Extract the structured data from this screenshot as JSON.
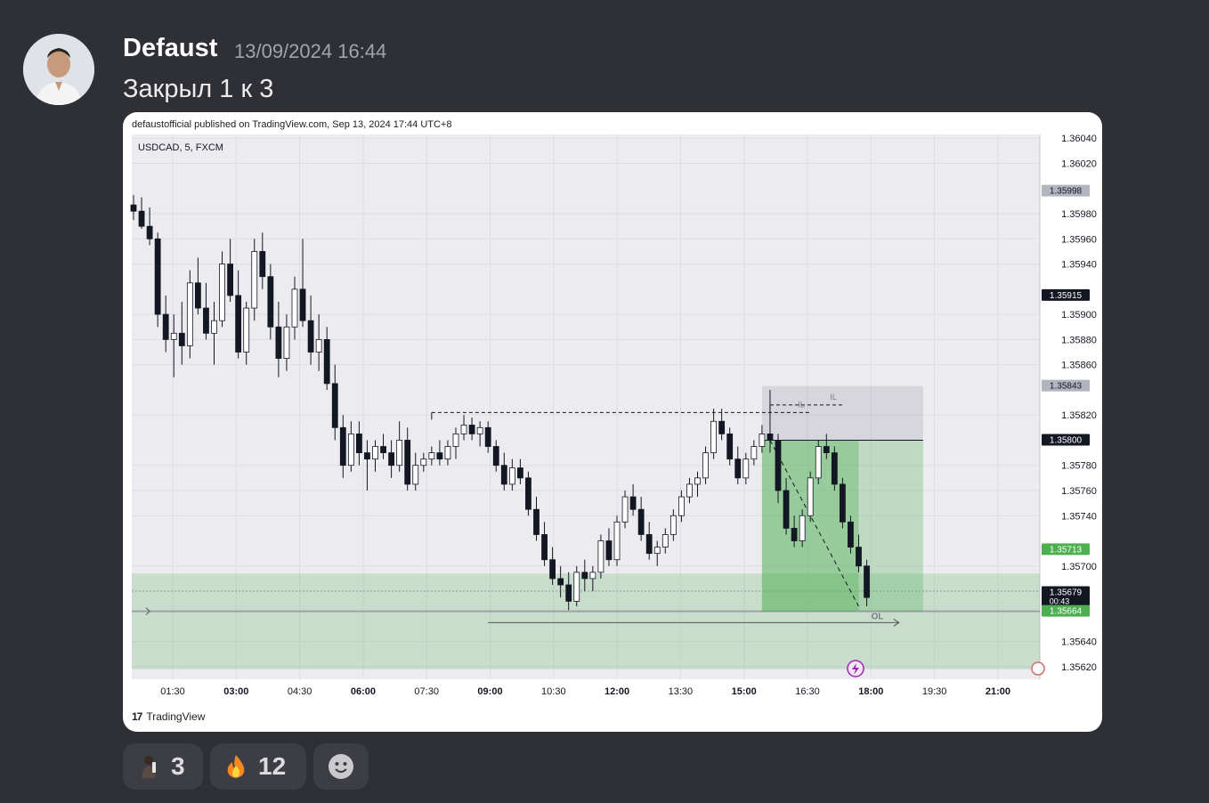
{
  "message": {
    "author": "Defaust",
    "timestamp": "13/09/2024 16:44",
    "text": "Закрыл 1 к 3"
  },
  "embed": {
    "publish_line": "defaustofficial published on TradingView.com, Sep 13, 2024 17:44 UTC+8",
    "footer_brand": "TradingView",
    "footer_logo": "17"
  },
  "chart_data": {
    "type": "candlestick",
    "symbol_label": "USDCAD, 5, FXCM",
    "x_tick_labels": [
      "01:30",
      "03:00",
      "04:30",
      "06:00",
      "07:30",
      "09:00",
      "10:30",
      "12:00",
      "13:30",
      "15:00",
      "16:30",
      "18:00",
      "19:30",
      "21:00"
    ],
    "x_tick_bold": [
      "03:00",
      "06:00",
      "09:00",
      "12:00",
      "15:00",
      "18:00",
      "21:00"
    ],
    "y_tick_labels": [
      "1.36040",
      "1.36020",
      "1.35980",
      "1.35960",
      "1.35940",
      "1.35900",
      "1.35880",
      "1.35860",
      "1.35820",
      "1.35780",
      "1.35760",
      "1.35740",
      "1.35700",
      "1.35640",
      "1.35620"
    ],
    "ylim": [
      1.3561,
      1.36043
    ],
    "price_badges": [
      {
        "label": "1.35998",
        "value": 1.35998,
        "color": "#b2b5be",
        "text_color": "#131722"
      },
      {
        "label": "1.35915",
        "value": 1.35915,
        "color": "#131722",
        "text_color": "#ffffff"
      },
      {
        "label": "1.35843",
        "value": 1.35843,
        "color": "#b2b5be",
        "text_color": "#131722"
      },
      {
        "label": "1.35800",
        "value": 1.358,
        "color": "#131722",
        "text_color": "#ffffff"
      },
      {
        "label": "1.35713",
        "value": 1.35713,
        "color": "#4caf50",
        "text_color": "#ffffff"
      },
      {
        "label": "1.35679",
        "value": 1.35679,
        "color": "#131722",
        "text_color": "#ffffff",
        "sub": "00:43"
      },
      {
        "label": "1.35664",
        "value": 1.35664,
        "color": "#4caf50",
        "text_color": "#ffffff"
      }
    ],
    "annotations": [
      "IL",
      "IL",
      "OL"
    ],
    "position": {
      "entry": 1.358,
      "stop": 1.35843,
      "target": 1.35664
    },
    "demand_zone": {
      "top": 1.35694,
      "bottom": 1.35618
    },
    "colors": {
      "up": "#ffffff",
      "down": "#131722",
      "profit_zone": "#4caf50",
      "stop_zone": "#9598a1",
      "chart_bg": "#ecebf0"
    },
    "candles": [
      [
        0,
        1.35987,
        1.35995,
        1.35975,
        1.35982
      ],
      [
        1,
        1.35982,
        1.35993,
        1.35968,
        1.3597
      ],
      [
        2,
        1.3597,
        1.35985,
        1.35955,
        1.3596
      ],
      [
        3,
        1.3596,
        1.35965,
        1.3589,
        1.359
      ],
      [
        4,
        1.359,
        1.35915,
        1.3587,
        1.3588
      ],
      [
        5,
        1.3588,
        1.359,
        1.3585,
        1.35885
      ],
      [
        6,
        1.35885,
        1.3591,
        1.3586,
        1.35875
      ],
      [
        7,
        1.35875,
        1.35935,
        1.35865,
        1.35925
      ],
      [
        8,
        1.35925,
        1.35945,
        1.359,
        1.35905
      ],
      [
        9,
        1.35905,
        1.35925,
        1.3588,
        1.35885
      ],
      [
        10,
        1.35885,
        1.3591,
        1.3586,
        1.35895
      ],
      [
        11,
        1.35895,
        1.3595,
        1.3589,
        1.3594
      ],
      [
        12,
        1.3594,
        1.3596,
        1.3591,
        1.35915
      ],
      [
        13,
        1.35915,
        1.35935,
        1.35865,
        1.3587
      ],
      [
        14,
        1.3587,
        1.3591,
        1.3586,
        1.35905
      ],
      [
        15,
        1.35905,
        1.3596,
        1.35895,
        1.3595
      ],
      [
        16,
        1.3595,
        1.35965,
        1.3592,
        1.3593
      ],
      [
        17,
        1.3593,
        1.3594,
        1.3588,
        1.3589
      ],
      [
        18,
        1.3589,
        1.3591,
        1.3585,
        1.35865
      ],
      [
        19,
        1.35865,
        1.359,
        1.35855,
        1.3589
      ],
      [
        20,
        1.3589,
        1.3593,
        1.3588,
        1.3592
      ],
      [
        21,
        1.3592,
        1.3596,
        1.3589,
        1.35895
      ],
      [
        22,
        1.35895,
        1.35915,
        1.3586,
        1.3587
      ],
      [
        23,
        1.3587,
        1.359,
        1.35855,
        1.3588
      ],
      [
        24,
        1.3588,
        1.3589,
        1.3584,
        1.35845
      ],
      [
        25,
        1.35845,
        1.3586,
        1.358,
        1.3581
      ],
      [
        26,
        1.3581,
        1.3582,
        1.3577,
        1.3578
      ],
      [
        27,
        1.3578,
        1.35815,
        1.35775,
        1.35805
      ],
      [
        28,
        1.35805,
        1.35815,
        1.3578,
        1.3579
      ],
      [
        29,
        1.3579,
        1.358,
        1.3576,
        1.35785
      ],
      [
        30,
        1.35785,
        1.358,
        1.35775,
        1.35795
      ],
      [
        31,
        1.35795,
        1.35805,
        1.35785,
        1.3579
      ],
      [
        32,
        1.3579,
        1.358,
        1.3577,
        1.3578
      ],
      [
        33,
        1.3578,
        1.35815,
        1.35775,
        1.358
      ],
      [
        34,
        1.358,
        1.3581,
        1.3576,
        1.35765
      ],
      [
        35,
        1.35765,
        1.3579,
        1.3576,
        1.3578
      ],
      [
        36,
        1.3578,
        1.3579,
        1.35775,
        1.35785
      ],
      [
        37,
        1.35785,
        1.35795,
        1.3578,
        1.3579
      ],
      [
        38,
        1.3579,
        1.358,
        1.3578,
        1.35785
      ],
      [
        39,
        1.35785,
        1.358,
        1.3578,
        1.35795
      ],
      [
        40,
        1.35795,
        1.3581,
        1.35785,
        1.35805
      ],
      [
        41,
        1.35805,
        1.3582,
        1.358,
        1.35812
      ],
      [
        42,
        1.35812,
        1.35818,
        1.358,
        1.35805
      ],
      [
        43,
        1.35805,
        1.35815,
        1.35795,
        1.3581
      ],
      [
        44,
        1.3581,
        1.35815,
        1.3579,
        1.35795
      ],
      [
        45,
        1.35795,
        1.358,
        1.35775,
        1.3578
      ],
      [
        46,
        1.3578,
        1.3579,
        1.3576,
        1.35765
      ],
      [
        47,
        1.35765,
        1.35785,
        1.3576,
        1.35778
      ],
      [
        48,
        1.35778,
        1.35785,
        1.35765,
        1.3577
      ],
      [
        49,
        1.3577,
        1.35775,
        1.3574,
        1.35745
      ],
      [
        50,
        1.35745,
        1.35755,
        1.3572,
        1.35725
      ],
      [
        51,
        1.35725,
        1.35735,
        1.357,
        1.35705
      ],
      [
        52,
        1.35705,
        1.35715,
        1.35685,
        1.3569
      ],
      [
        53,
        1.3569,
        1.357,
        1.35675,
        1.35685
      ],
      [
        54,
        1.35685,
        1.35695,
        1.35665,
        1.35672
      ],
      [
        55,
        1.35672,
        1.357,
        1.35668,
        1.35695
      ],
      [
        56,
        1.35695,
        1.35705,
        1.3568,
        1.3569
      ],
      [
        57,
        1.3569,
        1.357,
        1.3568,
        1.35695
      ],
      [
        58,
        1.35695,
        1.35725,
        1.3569,
        1.3572
      ],
      [
        59,
        1.3572,
        1.3573,
        1.357,
        1.35705
      ],
      [
        60,
        1.35705,
        1.3574,
        1.357,
        1.35735
      ],
      [
        61,
        1.35735,
        1.3576,
        1.3573,
        1.35755
      ],
      [
        62,
        1.35755,
        1.35765,
        1.3574,
        1.35745
      ],
      [
        63,
        1.35745,
        1.35755,
        1.3572,
        1.35725
      ],
      [
        64,
        1.35725,
        1.35735,
        1.35705,
        1.3571
      ],
      [
        65,
        1.3571,
        1.3572,
        1.357,
        1.35715
      ],
      [
        66,
        1.35715,
        1.3573,
        1.3571,
        1.35725
      ],
      [
        67,
        1.35725,
        1.35745,
        1.3572,
        1.3574
      ],
      [
        68,
        1.3574,
        1.3576,
        1.35735,
        1.35755
      ],
      [
        69,
        1.35755,
        1.3577,
        1.3575,
        1.35765
      ],
      [
        70,
        1.35765,
        1.35775,
        1.35755,
        1.3577
      ],
      [
        71,
        1.3577,
        1.35795,
        1.35765,
        1.3579
      ],
      [
        72,
        1.3579,
        1.35825,
        1.35785,
        1.35815
      ],
      [
        73,
        1.35815,
        1.35825,
        1.358,
        1.35805
      ],
      [
        74,
        1.35805,
        1.3581,
        1.3578,
        1.35785
      ],
      [
        75,
        1.35785,
        1.35795,
        1.35765,
        1.3577
      ],
      [
        76,
        1.3577,
        1.3579,
        1.35765,
        1.35785
      ],
      [
        77,
        1.35785,
        1.358,
        1.3578,
        1.35795
      ],
      [
        78,
        1.35795,
        1.35812,
        1.3579,
        1.35805
      ],
      [
        79,
        1.35805,
        1.3584,
        1.3579,
        1.358
      ],
      [
        80,
        1.358,
        1.35805,
        1.3575,
        1.3576
      ],
      [
        81,
        1.3576,
        1.3577,
        1.35725,
        1.3573
      ],
      [
        82,
        1.3573,
        1.3574,
        1.35715,
        1.3572
      ],
      [
        83,
        1.3572,
        1.35745,
        1.35715,
        1.3574
      ],
      [
        84,
        1.3574,
        1.35775,
        1.35735,
        1.3577
      ],
      [
        85,
        1.3577,
        1.358,
        1.35765,
        1.35795
      ],
      [
        86,
        1.35795,
        1.35805,
        1.35785,
        1.3579
      ],
      [
        87,
        1.3579,
        1.35795,
        1.3576,
        1.35765
      ],
      [
        88,
        1.35765,
        1.3577,
        1.3573,
        1.35735
      ],
      [
        89,
        1.35735,
        1.3574,
        1.3571,
        1.35715
      ],
      [
        90,
        1.35715,
        1.35725,
        1.35695,
        1.357
      ],
      [
        91,
        1.357,
        1.35705,
        1.35668,
        1.35675
      ]
    ],
    "dashed_levels": [
      {
        "from": 37,
        "to": 84,
        "value": 1.35822,
        "label": "IL"
      },
      {
        "from": 79,
        "to": 88,
        "value": 1.35828,
        "label": "IL"
      }
    ]
  }
}
